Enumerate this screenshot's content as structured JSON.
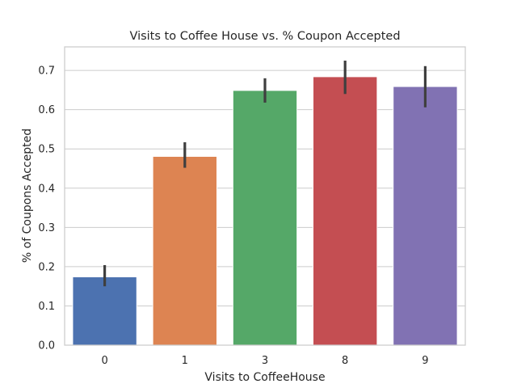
{
  "chart_data": {
    "type": "bar",
    "title": "Visits to Coffee House vs. % Coupon Accepted",
    "xlabel": "Visits to CoffeeHouse",
    "ylabel": "% of Coupons Accepted",
    "categories": [
      "0",
      "1",
      "3",
      "8",
      "9"
    ],
    "values": [
      0.174,
      0.481,
      0.649,
      0.684,
      0.659
    ],
    "error_low": [
      0.15,
      0.452,
      0.618,
      0.64,
      0.606
    ],
    "error_high": [
      0.204,
      0.517,
      0.68,
      0.725,
      0.711
    ],
    "colors": [
      "#4c72b0",
      "#dd8452",
      "#55a868",
      "#c44e52",
      "#8172b3"
    ],
    "error_color": "#3f3f3f",
    "ylim": [
      0,
      0.76
    ],
    "yticks": [
      0.0,
      0.1,
      0.2,
      0.3,
      0.4,
      0.5,
      0.6,
      0.7
    ],
    "ytick_labels": [
      "0.0",
      "0.1",
      "0.2",
      "0.3",
      "0.4",
      "0.5",
      "0.6",
      "0.7"
    ],
    "grid": "horizontal",
    "legend": "none"
  }
}
